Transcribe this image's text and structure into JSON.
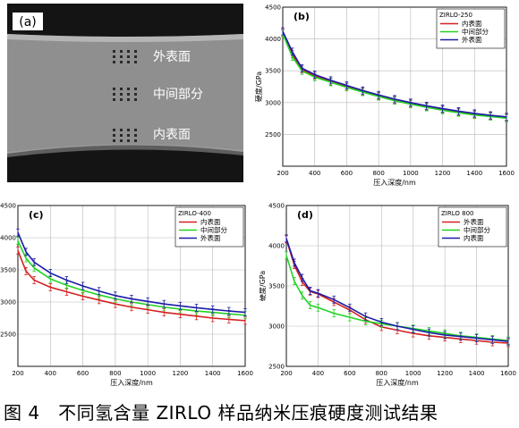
{
  "figure": {
    "caption": "图 4　不同氢含量 ZIRLO 样品纳米压痕硬度测试结果"
  },
  "micrograph": {
    "panel_label": "(a)",
    "labels": [
      "外表面",
      "中间部分",
      "内表面"
    ]
  },
  "colors": {
    "red": "#d42020",
    "green": "#22d322",
    "blue": "#1c1ca8",
    "grid": "#b8b8b8",
    "axis": "#000000"
  },
  "chart_data": [
    {
      "panel_label": "(b)",
      "type": "line",
      "legend_title": "ZIRLO-250",
      "legend_position": "top-right",
      "xlabel": "压入深度/nm",
      "ylabel": "硬度/GPa",
      "xlim": [
        200,
        1600
      ],
      "ylim": [
        2000,
        4500
      ],
      "xticks": [
        "200",
        "400",
        "600",
        "800",
        "1000",
        "1200",
        "1400",
        "1600"
      ],
      "yticks": [
        "2500",
        "3000",
        "3500",
        "4000",
        "4500"
      ],
      "grid": true,
      "x": [
        200,
        260,
        320,
        400,
        500,
        600,
        700,
        800,
        900,
        1000,
        1100,
        1200,
        1300,
        1400,
        1500,
        1600
      ],
      "series": [
        {
          "name": "内表面",
          "color": "red",
          "values": [
            4100,
            3760,
            3520,
            3420,
            3330,
            3250,
            3175,
            3105,
            3040,
            2985,
            2935,
            2890,
            2850,
            2815,
            2790,
            2765
          ]
        },
        {
          "name": "中间部分",
          "color": "green",
          "values": [
            4080,
            3720,
            3500,
            3400,
            3320,
            3240,
            3165,
            3095,
            3030,
            2975,
            2925,
            2880,
            2840,
            2805,
            2780,
            2755
          ]
        },
        {
          "name": "外表面",
          "color": "blue",
          "values": [
            4120,
            3800,
            3540,
            3440,
            3350,
            3270,
            3190,
            3120,
            3055,
            3000,
            2950,
            2905,
            2865,
            2830,
            2800,
            2775
          ]
        }
      ]
    },
    {
      "panel_label": "(c)",
      "type": "line",
      "legend_title": "ZIRLO-400",
      "legend_position": "top-right",
      "xlabel": "压入深度/nm",
      "ylabel": "",
      "xlim": [
        200,
        1600
      ],
      "ylim": [
        2000,
        4500
      ],
      "xticks": [
        "200",
        "400",
        "600",
        "800",
        "1000",
        "1200",
        "1400",
        "1600"
      ],
      "yticks": [
        "4500",
        "4000",
        "3500",
        "3000",
        "2500"
      ],
      "grid": true,
      "x": [
        200,
        250,
        300,
        400,
        500,
        600,
        700,
        800,
        900,
        1000,
        1100,
        1200,
        1300,
        1400,
        1500,
        1600
      ],
      "series": [
        {
          "name": "内表面",
          "color": "red",
          "values": [
            3800,
            3480,
            3340,
            3230,
            3160,
            3090,
            3030,
            2970,
            2920,
            2880,
            2840,
            2810,
            2780,
            2750,
            2730,
            2710
          ]
        },
        {
          "name": "中间部分",
          "color": "green",
          "values": [
            3950,
            3680,
            3530,
            3360,
            3260,
            3180,
            3110,
            3050,
            3000,
            2960,
            2920,
            2890,
            2860,
            2840,
            2815,
            2795
          ]
        },
        {
          "name": "外表面",
          "color": "blue",
          "values": [
            4080,
            3780,
            3620,
            3450,
            3340,
            3250,
            3170,
            3100,
            3050,
            3010,
            2970,
            2940,
            2910,
            2885,
            2860,
            2840
          ]
        }
      ]
    },
    {
      "panel_label": "(d)",
      "type": "line",
      "legend_title": "ZIRLO 800",
      "legend_position": "top-right",
      "xlabel": "压入深度/nm",
      "ylabel": "硬度/GPa",
      "xlim": [
        200,
        1600
      ],
      "ylim": [
        2500,
        4500
      ],
      "xticks": [
        "200",
        "400",
        "600",
        "800",
        "1000",
        "1200",
        "1400",
        "1600"
      ],
      "yticks": [
        "2500",
        "3000",
        "3500",
        "4000",
        "4500"
      ],
      "grid": true,
      "x": [
        200,
        250,
        300,
        350,
        400,
        500,
        600,
        700,
        800,
        900,
        1000,
        1100,
        1200,
        1300,
        1400,
        1500,
        1600
      ],
      "series": [
        {
          "name": "外表面",
          "color": "red",
          "values": [
            4080,
            3760,
            3550,
            3430,
            3400,
            3300,
            3200,
            3080,
            2990,
            2950,
            2910,
            2880,
            2860,
            2840,
            2820,
            2800,
            2790
          ]
        },
        {
          "name": "中间部分",
          "color": "green",
          "values": [
            3880,
            3560,
            3380,
            3260,
            3230,
            3160,
            3110,
            3060,
            3030,
            3000,
            2970,
            2940,
            2910,
            2880,
            2860,
            2840,
            2820
          ]
        },
        {
          "name": "内表面",
          "color": "blue",
          "values": [
            4090,
            3790,
            3600,
            3440,
            3410,
            3330,
            3230,
            3120,
            3050,
            3000,
            2960,
            2920,
            2890,
            2870,
            2850,
            2830,
            2810
          ]
        }
      ]
    }
  ]
}
